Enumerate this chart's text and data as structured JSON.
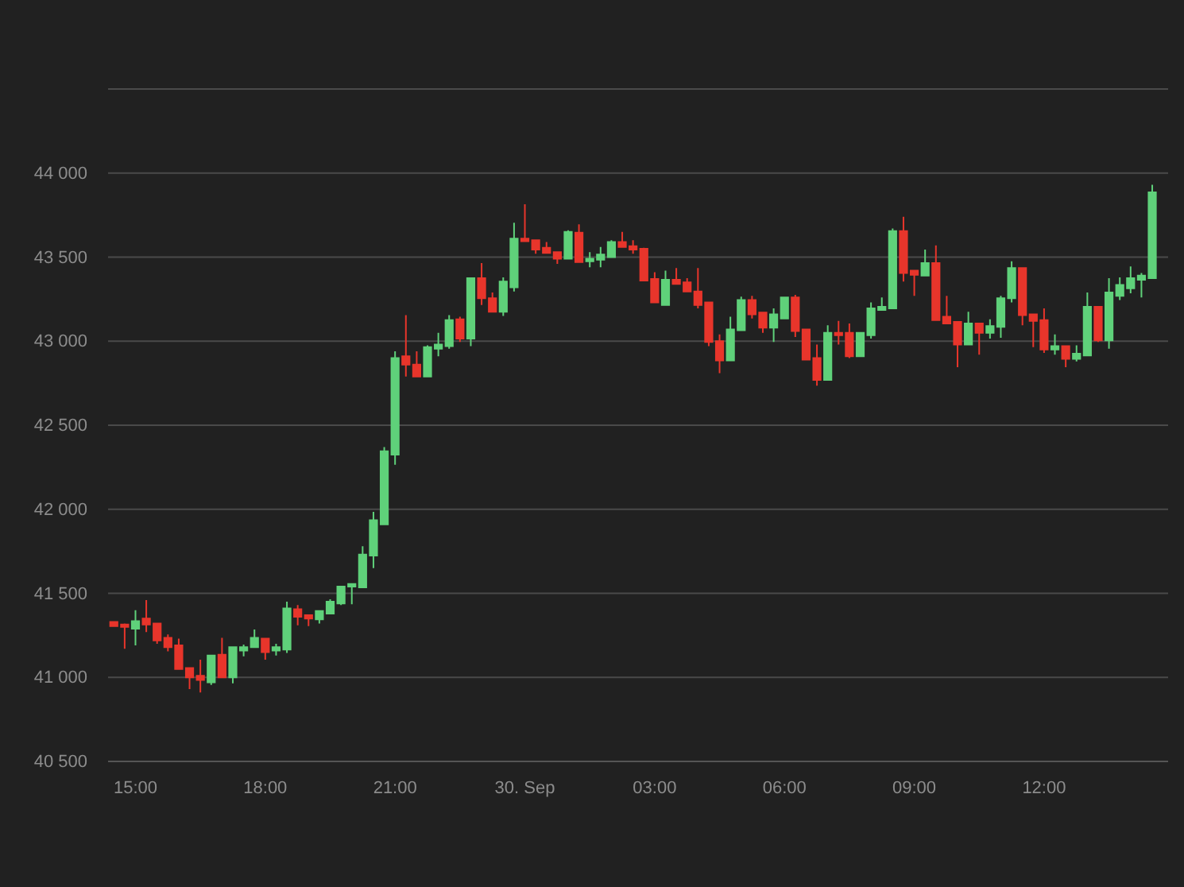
{
  "chart_data": {
    "type": "candlestick",
    "x": [
      "--09-29T14:30",
      "--09-29T14:45",
      "--09-29T15:00",
      "--09-29T15:15",
      "--09-29T15:30",
      "--09-29T15:45",
      "--09-29T16:00",
      "--09-29T16:15",
      "--09-29T16:30",
      "--09-29T16:45",
      "--09-29T17:00",
      "--09-29T17:15",
      "--09-29T17:30",
      "--09-29T17:45",
      "--09-29T18:00",
      "--09-29T18:15",
      "--09-29T18:30",
      "--09-29T18:45",
      "--09-29T19:00",
      "--09-29T19:15",
      "--09-29T19:30",
      "--09-29T19:45",
      "--09-29T20:00",
      "--09-29T20:15",
      "--09-29T20:30",
      "--09-29T20:45",
      "--09-29T21:00",
      "--09-29T21:15",
      "--09-29T21:30",
      "--09-29T21:45",
      "--09-29T22:00",
      "--09-29T22:15",
      "--09-29T22:30",
      "--09-29T22:45",
      "--09-29T23:00",
      "--09-29T23:15",
      "--09-29T23:30",
      "--09-29T23:45",
      "--09-30T00:00",
      "--09-30T00:15",
      "--09-30T00:30",
      "--09-30T00:45",
      "--09-30T01:00",
      "--09-30T01:15",
      "--09-30T01:30",
      "--09-30T01:45",
      "--09-30T02:00",
      "--09-30T02:15",
      "--09-30T02:30",
      "--09-30T02:45",
      "--09-30T03:00",
      "--09-30T03:15",
      "--09-30T03:30",
      "--09-30T03:45",
      "--09-30T04:00",
      "--09-30T04:15",
      "--09-30T04:30",
      "--09-30T04:45",
      "--09-30T05:00",
      "--09-30T05:15",
      "--09-30T05:30",
      "--09-30T05:45",
      "--09-30T06:00",
      "--09-30T06:15",
      "--09-30T06:30",
      "--09-30T06:45",
      "--09-30T07:00",
      "--09-30T07:15",
      "--09-30T07:30",
      "--09-30T07:45",
      "--09-30T08:00",
      "--09-30T08:15",
      "--09-30T08:30",
      "--09-30T08:45",
      "--09-30T09:00",
      "--09-30T09:15",
      "--09-30T09:30",
      "--09-30T09:45",
      "--09-30T10:00",
      "--09-30T10:15",
      "--09-30T10:30",
      "--09-30T10:45",
      "--09-30T11:00",
      "--09-30T11:15",
      "--09-30T11:30",
      "--09-30T11:45",
      "--09-30T12:00",
      "--09-30T12:15",
      "--09-30T12:30",
      "--09-30T12:45",
      "--09-30T13:00",
      "--09-30T13:15",
      "--09-30T13:30",
      "--09-30T13:45",
      "--09-30T14:00",
      "--09-30T14:15",
      "--09-30T14:30"
    ],
    "ohlc": [
      [
        41330,
        41335,
        41300,
        41305
      ],
      [
        41315,
        41320,
        41170,
        41300
      ],
      [
        41290,
        41400,
        41190,
        41335
      ],
      [
        41350,
        41460,
        41270,
        41315
      ],
      [
        41320,
        41325,
        41200,
        41220
      ],
      [
        41235,
        41255,
        41155,
        41180
      ],
      [
        41190,
        41230,
        41050,
        41050
      ],
      [
        41055,
        41055,
        40930,
        41000
      ],
      [
        41010,
        41105,
        40910,
        40985
      ],
      [
        40970,
        41135,
        40955,
        41130
      ],
      [
        41135,
        41235,
        41000,
        41000
      ],
      [
        41000,
        41180,
        40965,
        41180
      ],
      [
        41160,
        41195,
        41125,
        41180
      ],
      [
        41180,
        41285,
        41180,
        41235
      ],
      [
        41230,
        41230,
        41105,
        41150
      ],
      [
        41160,
        41200,
        41130,
        41180
      ],
      [
        41165,
        41450,
        41145,
        41410
      ],
      [
        41405,
        41430,
        41310,
        41360
      ],
      [
        41370,
        41375,
        41305,
        41350
      ],
      [
        41345,
        41400,
        41320,
        41395
      ],
      [
        41380,
        41465,
        41380,
        41450
      ],
      [
        41440,
        41545,
        41430,
        41540
      ],
      [
        41540,
        41560,
        41435,
        41555
      ],
      [
        41535,
        41780,
        41535,
        41730
      ],
      [
        41725,
        41985,
        41650,
        41935
      ],
      [
        41910,
        42370,
        41910,
        42345
      ],
      [
        42325,
        42940,
        42265,
        42900
      ],
      [
        42910,
        43155,
        42790,
        42860
      ],
      [
        42860,
        42940,
        42790,
        42790
      ],
      [
        42790,
        42975,
        42790,
        42965
      ],
      [
        42955,
        43050,
        42910,
        42980
      ],
      [
        42970,
        43155,
        42955,
        43125
      ],
      [
        43130,
        43145,
        42995,
        43015
      ],
      [
        43015,
        43380,
        42970,
        43375
      ],
      [
        43375,
        43465,
        43215,
        43255
      ],
      [
        43255,
        43290,
        43175,
        43175
      ],
      [
        43175,
        43380,
        43150,
        43355
      ],
      [
        43320,
        43705,
        43295,
        43610
      ],
      [
        43610,
        43815,
        43590,
        43595
      ],
      [
        43600,
        43600,
        43520,
        43545
      ],
      [
        43555,
        43590,
        43525,
        43525
      ],
      [
        43530,
        43530,
        43460,
        43490
      ],
      [
        43490,
        43660,
        43490,
        43650
      ],
      [
        43645,
        43695,
        43470,
        43470
      ],
      [
        43475,
        43530,
        43440,
        43490
      ],
      [
        43485,
        43560,
        43440,
        43515
      ],
      [
        43500,
        43600,
        43500,
        43590
      ],
      [
        43590,
        43650,
        43560,
        43560
      ],
      [
        43565,
        43600,
        43520,
        43545
      ],
      [
        43550,
        43555,
        43360,
        43360
      ],
      [
        43370,
        43410,
        43230,
        43230
      ],
      [
        43215,
        43420,
        43210,
        43365
      ],
      [
        43365,
        43435,
        43340,
        43340
      ],
      [
        43350,
        43375,
        43295,
        43295
      ],
      [
        43295,
        43435,
        43195,
        43215
      ],
      [
        43230,
        43230,
        42970,
        42995
      ],
      [
        43000,
        43040,
        42810,
        42885
      ],
      [
        42885,
        43145,
        42885,
        43070
      ],
      [
        43065,
        43265,
        43065,
        43245
      ],
      [
        43245,
        43270,
        43135,
        43160
      ],
      [
        43170,
        43175,
        43050,
        43080
      ],
      [
        43080,
        43195,
        42995,
        43160
      ],
      [
        43135,
        43265,
        43135,
        43260
      ],
      [
        43260,
        43275,
        43025,
        43060
      ],
      [
        43070,
        43070,
        42885,
        42890
      ],
      [
        42900,
        42980,
        42735,
        42770
      ],
      [
        42770,
        43095,
        42770,
        43050
      ],
      [
        43050,
        43120,
        42980,
        43035
      ],
      [
        43050,
        43105,
        42900,
        42910
      ],
      [
        42910,
        43050,
        42910,
        43050
      ],
      [
        43035,
        43230,
        43015,
        43195
      ],
      [
        43185,
        43260,
        43185,
        43205
      ],
      [
        43195,
        43670,
        43195,
        43655
      ],
      [
        43655,
        43740,
        43355,
        43405
      ],
      [
        43420,
        43420,
        43270,
        43395
      ],
      [
        43390,
        43545,
        43390,
        43465
      ],
      [
        43465,
        43570,
        43120,
        43125
      ],
      [
        43145,
        43270,
        43105,
        43105
      ],
      [
        43115,
        43115,
        42845,
        42980
      ],
      [
        42980,
        43175,
        42980,
        43105
      ],
      [
        43105,
        43105,
        42920,
        43050
      ],
      [
        43050,
        43130,
        43015,
        43090
      ],
      [
        43085,
        43270,
        43020,
        43255
      ],
      [
        43255,
        43475,
        43230,
        43435
      ],
      [
        43435,
        43435,
        43095,
        43155
      ],
      [
        43160,
        43160,
        42965,
        43120
      ],
      [
        43125,
        43195,
        42930,
        42950
      ],
      [
        42950,
        43040,
        42920,
        42970
      ],
      [
        42970,
        42970,
        42845,
        42895
      ],
      [
        42895,
        42975,
        42880,
        42925
      ],
      [
        42915,
        43290,
        42915,
        43205
      ],
      [
        43205,
        43205,
        42995,
        43005
      ],
      [
        43005,
        43375,
        42955,
        43290
      ],
      [
        43270,
        43380,
        43245,
        43335
      ],
      [
        43315,
        43445,
        43285,
        43375
      ],
      [
        43365,
        43405,
        43260,
        43390
      ],
      [
        43375,
        43930,
        43375,
        43885
      ]
    ],
    "colors": [
      "#e8352b",
      "#e8352b",
      "#5fd17a",
      "#e8352b",
      "#e8352b",
      "#e8352b",
      "#e8352b",
      "#e8352b",
      "#e8352b",
      "#5fd17a",
      "#e8352b",
      "#5fd17a",
      "#5fd17a",
      "#5fd17a",
      "#e8352b",
      "#5fd17a",
      "#5fd17a",
      "#e8352b",
      "#e8352b",
      "#5fd17a",
      "#5fd17a",
      "#5fd17a",
      "#5fd17a",
      "#5fd17a",
      "#5fd17a",
      "#5fd17a",
      "#5fd17a",
      "#e8352b",
      "#e8352b",
      "#5fd17a",
      "#5fd17a",
      "#5fd17a",
      "#e8352b",
      "#5fd17a",
      "#e8352b",
      "#e8352b",
      "#5fd17a",
      "#5fd17a",
      "#e8352b",
      "#e8352b",
      "#e8352b",
      "#e8352b",
      "#5fd17a",
      "#e8352b",
      "#5fd17a",
      "#5fd17a",
      "#5fd17a",
      "#e8352b",
      "#e8352b",
      "#e8352b",
      "#e8352b",
      "#5fd17a",
      "#e8352b",
      "#e8352b",
      "#e8352b",
      "#e8352b",
      "#e8352b",
      "#5fd17a",
      "#5fd17a",
      "#e8352b",
      "#e8352b",
      "#5fd17a",
      "#5fd17a",
      "#e8352b",
      "#e8352b",
      "#e8352b",
      "#5fd17a",
      "#e8352b",
      "#e8352b",
      "#5fd17a",
      "#5fd17a",
      "#5fd17a",
      "#5fd17a",
      "#e8352b",
      "#e8352b",
      "#5fd17a",
      "#e8352b",
      "#e8352b",
      "#e8352b",
      "#5fd17a",
      "#e8352b",
      "#5fd17a",
      "#5fd17a",
      "#5fd17a",
      "#e8352b",
      "#e8352b",
      "#e8352b",
      "#5fd17a",
      "#e8352b",
      "#5fd17a",
      "#5fd17a",
      "#e8352b",
      "#5fd17a",
      "#5fd17a",
      "#5fd17a",
      "#5fd17a",
      "#5fd17a"
    ],
    "xlim": [
      "--09-29T14:22",
      "--09-30T14:52"
    ],
    "xticks": [
      {
        "value": "--09-29T15:00",
        "label": "15:00"
      },
      {
        "value": "--09-29T18:00",
        "label": "18:00"
      },
      {
        "value": "--09-29T21:00",
        "label": "21:00"
      },
      {
        "value": "--09-30T00:00",
        "label": "30. Sep"
      },
      {
        "value": "--09-30T03:00",
        "label": "03:00"
      },
      {
        "value": "--09-30T06:00",
        "label": "06:00"
      },
      {
        "value": "--09-30T09:00",
        "label": "09:00"
      },
      {
        "value": "--09-30T12:00",
        "label": "12:00"
      }
    ],
    "ylim": [
      40500,
      44500
    ],
    "yticks": [
      {
        "value": 40500,
        "label": "40 500"
      },
      {
        "value": 41000,
        "label": "41 000"
      },
      {
        "value": 41500,
        "label": "41 500"
      },
      {
        "value": 42000,
        "label": "42 000"
      },
      {
        "value": 42500,
        "label": "42 500"
      },
      {
        "value": 43000,
        "label": "43 000"
      },
      {
        "value": 43500,
        "label": "43 500"
      },
      {
        "value": 44000,
        "label": "44 000"
      },
      {
        "value": 44500,
        "label": null
      }
    ],
    "grid": "y"
  }
}
